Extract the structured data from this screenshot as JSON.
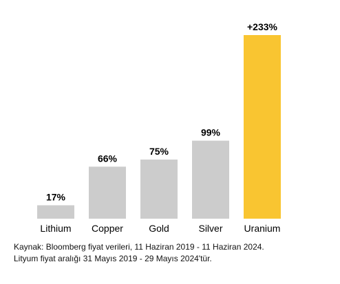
{
  "chart_data": {
    "type": "bar",
    "categories": [
      "Lithium",
      "Copper",
      "Gold",
      "Silver",
      "Uranium"
    ],
    "values": [
      17,
      66,
      75,
      99,
      233
    ],
    "value_labels": [
      "17%",
      "66%",
      "75%",
      "99%",
      "+233%"
    ],
    "colors": [
      "#cccccc",
      "#cccccc",
      "#cccccc",
      "#cccccc",
      "#f9c531"
    ],
    "unit": "%",
    "ylim": [
      0,
      233
    ],
    "grid": false,
    "legend": "none"
  },
  "source": {
    "line1": "Kaynak: Bloomberg fiyat verileri, 11 Haziran 2019 - 11 Haziran 2024.",
    "line2": "Lityum fiyat aralığı 31 Mayıs 2019 - 29 Mayıs 2024'tür."
  }
}
